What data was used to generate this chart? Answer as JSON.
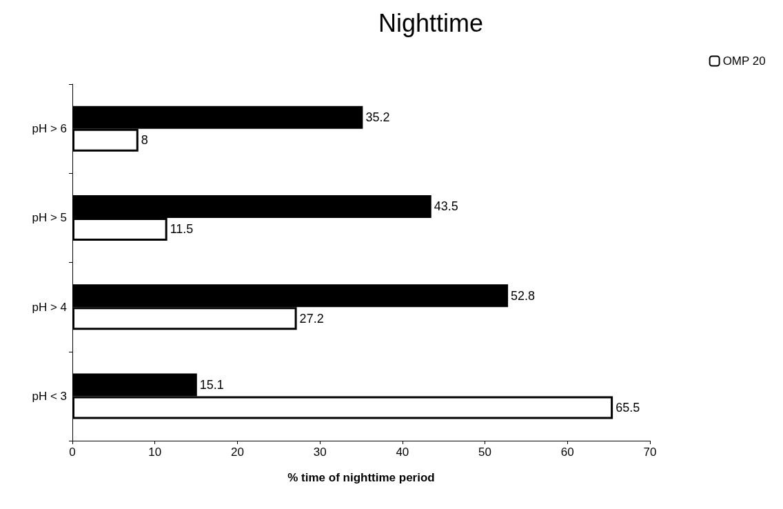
{
  "chart_data": {
    "type": "bar",
    "orientation": "horizontal",
    "title": "Nighttime",
    "xlabel": "% time of nighttime period",
    "categories": [
      "pH > 6",
      "pH > 5",
      "pH > 4",
      "pH < 3"
    ],
    "series": [
      {
        "color": "#000000",
        "values": [
          35.2,
          43.5,
          52.8,
          15.1
        ]
      },
      {
        "name": "OMP 20",
        "color": "#ffffff",
        "values": [
          8,
          11.5,
          27.2,
          65.5
        ]
      }
    ],
    "xlim": [
      0,
      70
    ],
    "xticks": [
      0,
      10,
      20,
      30,
      40,
      50,
      60,
      70
    ],
    "data_labels": true,
    "grid": false,
    "legend": "top right"
  }
}
